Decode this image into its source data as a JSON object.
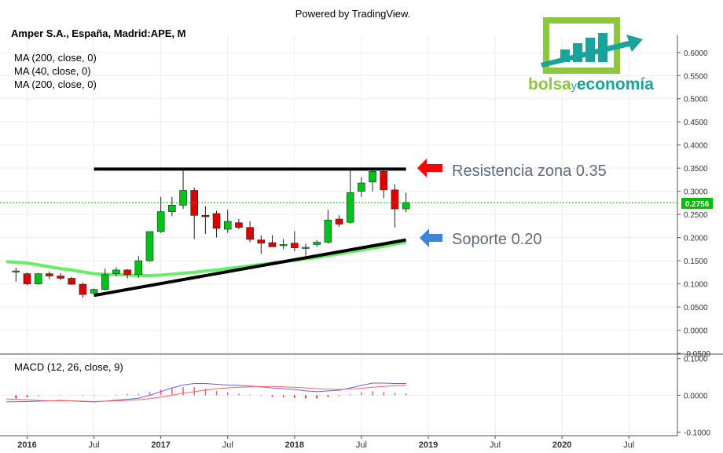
{
  "header": {
    "powered_by": "Powered by TradingView.",
    "symbol": "Amper S.A., España, Madrid:APE, M"
  },
  "indicators": [
    "MA (200, close, 0)",
    "MA (40, close, 0)",
    "MA (200, close, 0)"
  ],
  "logo": {
    "text_part1": "bolsa",
    "text_part2": "y",
    "text_part3": "economía"
  },
  "annotations": {
    "resistance": "Resistencia zona 0.35",
    "support": "Soporte 0.20"
  },
  "last_price_label": "0.2756",
  "colors": {
    "up": "#00c31a",
    "down": "#e00000",
    "ma": "#66ee66",
    "macd": "#6a5cf0",
    "signal": "#ff5e6a",
    "resistance_arrow": "#ff0000",
    "support_arrow": "#3d85d8",
    "last_price": "#00c000",
    "logo_green": "#8dc63f",
    "logo_teal": "#1aa39b"
  },
  "chart_data": [
    {
      "type": "candlestick",
      "interval": "monthly",
      "x_axis_labels": [
        "2016",
        "Jul",
        "2017",
        "Jul",
        "2018",
        "Jul",
        "2019",
        "Jul",
        "2020",
        "Jul"
      ],
      "y_axis": {
        "ticks": [
          "0.6000",
          "0.5500",
          "0.5000",
          "0.4500",
          "0.4000",
          "0.3500",
          "0.3000",
          "0.2500",
          "0.2000",
          "0.1500",
          "0.1000",
          "0.0500",
          "0.0000",
          "-0.0500"
        ],
        "range": [
          -0.05,
          0.62
        ]
      },
      "start_month": "2015-12",
      "candles": [
        {
          "o": 0.128,
          "h": 0.135,
          "l": 0.105,
          "c": 0.128
        },
        {
          "o": 0.122,
          "h": 0.125,
          "l": 0.097,
          "c": 0.1
        },
        {
          "o": 0.1,
          "h": 0.124,
          "l": 0.098,
          "c": 0.122
        },
        {
          "o": 0.122,
          "h": 0.127,
          "l": 0.11,
          "c": 0.117
        },
        {
          "o": 0.117,
          "h": 0.123,
          "l": 0.108,
          "c": 0.112
        },
        {
          "o": 0.112,
          "h": 0.115,
          "l": 0.098,
          "c": 0.099
        },
        {
          "o": 0.099,
          "h": 0.103,
          "l": 0.07,
          "c": 0.077
        },
        {
          "o": 0.08,
          "h": 0.09,
          "l": 0.078,
          "c": 0.088
        },
        {
          "o": 0.088,
          "h": 0.133,
          "l": 0.085,
          "c": 0.12
        },
        {
          "o": 0.122,
          "h": 0.136,
          "l": 0.116,
          "c": 0.13
        },
        {
          "o": 0.13,
          "h": 0.132,
          "l": 0.112,
          "c": 0.12
        },
        {
          "o": 0.12,
          "h": 0.16,
          "l": 0.113,
          "c": 0.15
        },
        {
          "o": 0.15,
          "h": 0.212,
          "l": 0.148,
          "c": 0.213
        },
        {
          "o": 0.213,
          "h": 0.288,
          "l": 0.21,
          "c": 0.256
        },
        {
          "o": 0.256,
          "h": 0.288,
          "l": 0.246,
          "c": 0.27
        },
        {
          "o": 0.27,
          "h": 0.35,
          "l": 0.262,
          "c": 0.302
        },
        {
          "o": 0.302,
          "h": 0.308,
          "l": 0.197,
          "c": 0.248
        },
        {
          "o": 0.248,
          "h": 0.268,
          "l": 0.208,
          "c": 0.245
        },
        {
          "o": 0.252,
          "h": 0.258,
          "l": 0.2,
          "c": 0.22
        },
        {
          "o": 0.218,
          "h": 0.26,
          "l": 0.21,
          "c": 0.235
        },
        {
          "o": 0.232,
          "h": 0.24,
          "l": 0.218,
          "c": 0.222
        },
        {
          "o": 0.222,
          "h": 0.235,
          "l": 0.19,
          "c": 0.196
        },
        {
          "o": 0.195,
          "h": 0.205,
          "l": 0.165,
          "c": 0.188
        },
        {
          "o": 0.189,
          "h": 0.205,
          "l": 0.182,
          "c": 0.18
        },
        {
          "o": 0.183,
          "h": 0.197,
          "l": 0.175,
          "c": 0.185
        },
        {
          "o": 0.188,
          "h": 0.214,
          "l": 0.17,
          "c": 0.178
        },
        {
          "o": 0.178,
          "h": 0.187,
          "l": 0.16,
          "c": 0.179
        },
        {
          "o": 0.185,
          "h": 0.195,
          "l": 0.18,
          "c": 0.19
        },
        {
          "o": 0.19,
          "h": 0.26,
          "l": 0.187,
          "c": 0.238
        },
        {
          "o": 0.24,
          "h": 0.248,
          "l": 0.223,
          "c": 0.229
        },
        {
          "o": 0.233,
          "h": 0.345,
          "l": 0.23,
          "c": 0.297
        },
        {
          "o": 0.3,
          "h": 0.33,
          "l": 0.288,
          "c": 0.318
        },
        {
          "o": 0.32,
          "h": 0.347,
          "l": 0.3,
          "c": 0.343
        },
        {
          "o": 0.343,
          "h": 0.345,
          "l": 0.285,
          "c": 0.303
        },
        {
          "o": 0.303,
          "h": 0.315,
          "l": 0.222,
          "c": 0.262
        },
        {
          "o": 0.262,
          "h": 0.297,
          "l": 0.255,
          "c": 0.276
        }
      ],
      "moving_average": [
        0.148,
        0.145,
        0.141,
        0.137,
        0.133,
        0.13,
        0.126,
        0.122,
        0.121,
        0.12,
        0.119,
        0.118,
        0.118,
        0.119,
        0.121,
        0.123,
        0.125,
        0.128,
        0.13,
        0.133,
        0.136,
        0.139,
        0.142,
        0.145,
        0.148,
        0.151,
        0.154,
        0.157,
        0.161,
        0.165,
        0.169,
        0.173,
        0.177,
        0.181,
        0.186,
        0.19
      ],
      "resistance_line": {
        "from": {
          "x": "2016-07",
          "y": 0.348
        },
        "to": {
          "x": "2018-11",
          "y": 0.348
        }
      },
      "support_line": {
        "from": {
          "x": "2016-07",
          "y": 0.075
        },
        "to": {
          "x": "2018-11",
          "y": 0.195
        }
      },
      "last_price": 0.2756
    },
    {
      "type": "line",
      "title": "MACD (12, 26, close, 9)",
      "y_axis": {
        "ticks": [
          "0.1000",
          "0.0000",
          "-0.1000"
        ],
        "range": [
          -0.11,
          0.11
        ]
      },
      "series": [
        {
          "values": [
            -0.018,
            -0.017,
            -0.016,
            -0.015,
            -0.014,
            -0.015,
            -0.017,
            -0.018,
            -0.016,
            -0.013,
            -0.011,
            -0.008,
            0.0,
            0.01,
            0.02,
            0.028,
            0.032,
            0.032,
            0.03,
            0.028,
            0.027,
            0.025,
            0.023,
            0.02,
            0.018,
            0.016,
            0.012,
            0.01,
            0.012,
            0.014,
            0.02,
            0.027,
            0.033,
            0.033,
            0.032,
            0.032
          ]
        },
        {
          "values": [
            -0.01,
            -0.012,
            -0.014,
            -0.015,
            -0.015,
            -0.015,
            -0.016,
            -0.017,
            -0.016,
            -0.015,
            -0.014,
            -0.012,
            -0.009,
            -0.005,
            0.0,
            0.006,
            0.01,
            0.014,
            0.018,
            0.02,
            0.022,
            0.023,
            0.024,
            0.024,
            0.023,
            0.022,
            0.02,
            0.018,
            0.017,
            0.016,
            0.017,
            0.019,
            0.022,
            0.024,
            0.026,
            0.027
          ]
        }
      ],
      "histogram": [
        -0.008,
        -0.005,
        -0.002,
        0.0,
        0.001,
        0.0,
        -0.001,
        -0.001,
        0.0,
        0.002,
        0.003,
        0.004,
        0.009,
        0.015,
        0.02,
        0.022,
        0.022,
        0.018,
        0.012,
        0.008,
        0.005,
        0.002,
        -0.001,
        -0.004,
        -0.005,
        -0.006,
        -0.008,
        -0.008,
        -0.005,
        -0.002,
        0.003,
        0.008,
        0.011,
        0.009,
        0.006,
        0.005
      ]
    }
  ]
}
